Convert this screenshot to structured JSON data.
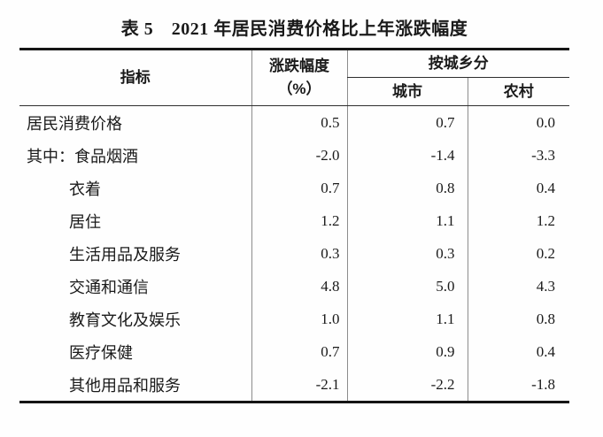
{
  "title": "表 5　2021 年居民消费价格比上年涨跌幅度",
  "table": {
    "headers": {
      "indicator": "指标",
      "change_line1": "涨跌幅度",
      "change_line2": "（%）",
      "by_region": "按城乡分",
      "urban": "城市",
      "rural": "农村"
    },
    "rows": [
      {
        "prefix": "",
        "indicator": "居民消费价格",
        "change": "0.5",
        "urban": "0.7",
        "rural": "0.0"
      },
      {
        "prefix": "其中：",
        "indicator": "食品烟酒",
        "change": "-2.0",
        "urban": "-1.4",
        "rural": "-3.3"
      },
      {
        "prefix": "",
        "indicator": "衣着",
        "change": "0.7",
        "urban": "0.8",
        "rural": "0.4"
      },
      {
        "prefix": "",
        "indicator": "居住",
        "change": "1.2",
        "urban": "1.1",
        "rural": "1.2"
      },
      {
        "prefix": "",
        "indicator": "生活用品及服务",
        "change": "0.3",
        "urban": "0.3",
        "rural": "0.2"
      },
      {
        "prefix": "",
        "indicator": "交通和通信",
        "change": "4.8",
        "urban": "5.0",
        "rural": "4.3"
      },
      {
        "prefix": "",
        "indicator": "教育文化及娱乐",
        "change": "1.0",
        "urban": "1.1",
        "rural": "0.8"
      },
      {
        "prefix": "",
        "indicator": "医疗保健",
        "change": "0.7",
        "urban": "0.9",
        "rural": "0.4"
      },
      {
        "prefix": "",
        "indicator": "其他用品和服务",
        "change": "-2.1",
        "urban": "-2.2",
        "rural": "-1.8"
      }
    ]
  }
}
